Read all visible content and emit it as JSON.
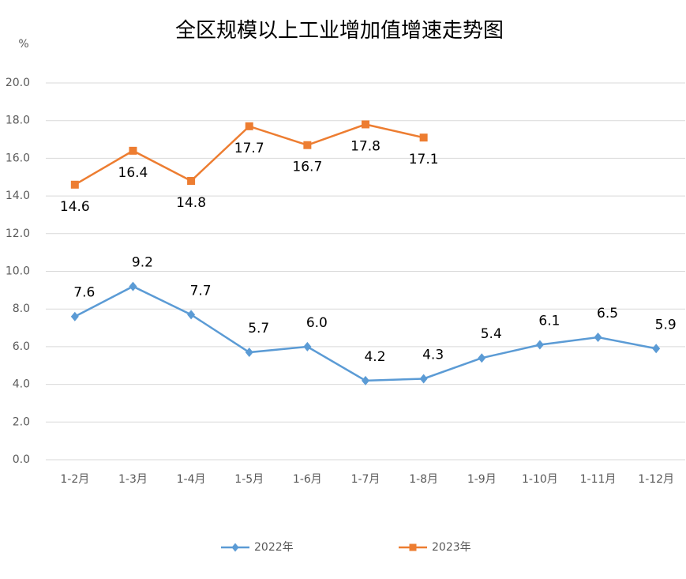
{
  "chart_data": {
    "type": "line",
    "title": "全区规模以上工业增加值增速走势图",
    "y_label": "%",
    "categories": [
      "1-2月",
      "1-3月",
      "1-4月",
      "1-5月",
      "1-6月",
      "1-7月",
      "1-8月",
      "1-9月",
      "1-10月",
      "1-11月",
      "1-12月"
    ],
    "series": [
      {
        "name": "2022年",
        "color": "#5b9bd5",
        "marker": "diamond",
        "label_position": "above",
        "values": [
          7.6,
          9.2,
          7.7,
          5.7,
          6.0,
          4.2,
          4.3,
          5.4,
          6.1,
          6.5,
          5.9
        ],
        "value_labels": [
          "7.6",
          "9.2",
          "7.7",
          "5.7",
          "6.0",
          "4.2",
          "4.3",
          "5.4",
          "6.1",
          "6.5",
          "5.9"
        ]
      },
      {
        "name": "2023年",
        "color": "#ed7d31",
        "marker": "square",
        "label_position": "below",
        "values": [
          14.6,
          16.4,
          14.8,
          17.7,
          16.7,
          17.8,
          17.1,
          null,
          null,
          null,
          null
        ],
        "value_labels": [
          "14.6",
          "16.4",
          "14.8",
          "17.7",
          "16.7",
          "17.8",
          "17.1",
          null,
          null,
          null,
          null
        ]
      }
    ],
    "ylim": [
      0,
      20
    ],
    "yticks": [
      {
        "value": 0,
        "label": "0.0"
      },
      {
        "value": 2,
        "label": "2.0"
      },
      {
        "value": 4,
        "label": "4.0"
      },
      {
        "value": 6,
        "label": "6.0"
      },
      {
        "value": 8,
        "label": "8.0"
      },
      {
        "value": 10,
        "label": "10.0"
      },
      {
        "value": 12,
        "label": "12.0"
      },
      {
        "value": 14,
        "label": "14.0"
      },
      {
        "value": 16,
        "label": "16.0"
      },
      {
        "value": 18,
        "label": "18.0"
      },
      {
        "value": 20,
        "label": "20.0"
      }
    ],
    "grid": true,
    "legend": "bottom"
  }
}
